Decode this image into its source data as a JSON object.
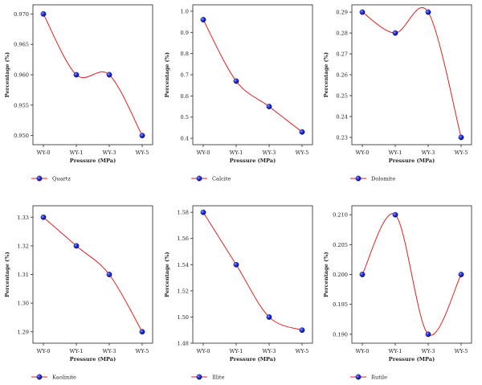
{
  "chart_data": [
    {
      "type": "scatter",
      "title": "",
      "xlabel": "Pressure (MPa)",
      "ylabel": "Percentage (%)",
      "categories": [
        "WY-0",
        "WY-1",
        "WY-3",
        "WY-5"
      ],
      "yticks": [
        "0.950",
        "0.955",
        "0.960",
        "0.965",
        "0.970"
      ],
      "ylim": [
        0.9485,
        0.9715
      ],
      "series": [
        {
          "name": "Quartz",
          "values": [
            0.97,
            0.96,
            0.96,
            0.95
          ]
        }
      ],
      "legend": "bottom-left",
      "grid": false,
      "marker_color": "#1c2bd8",
      "curve_color": "#e02020"
    },
    {
      "type": "scatter",
      "title": "",
      "xlabel": "Pressure (MPa)",
      "ylabel": "Percentage (%)",
      "categories": [
        "WY-0",
        "WY-1",
        "WY-3",
        "WY-5"
      ],
      "yticks": [
        "0.4",
        "0.5",
        "0.6",
        "0.7",
        "0.8",
        "0.9",
        "1.0"
      ],
      "ylim": [
        0.37,
        1.03
      ],
      "series": [
        {
          "name": "Calcite",
          "values": [
            0.96,
            0.67,
            0.55,
            0.43
          ]
        }
      ],
      "legend": "bottom-left",
      "grid": false,
      "marker_color": "#1c2bd8",
      "curve_color": "#e02020"
    },
    {
      "type": "scatter",
      "title": "",
      "xlabel": "Pressure (MPa)",
      "ylabel": "Percentage (%)",
      "categories": [
        "WY-0",
        "WY-1",
        "WY-3",
        "WY-5"
      ],
      "yticks": [
        "0.23",
        "0.24",
        "0.25",
        "0.26",
        "0.27",
        "0.28",
        "0.29"
      ],
      "ylim": [
        0.2265,
        0.2935
      ],
      "series": [
        {
          "name": "Dolomite",
          "values": [
            0.29,
            0.28,
            0.29,
            0.23
          ]
        }
      ],
      "legend": "bottom-left",
      "grid": false,
      "marker_color": "#1c2bd8",
      "curve_color": "#e02020"
    },
    {
      "type": "scatter",
      "title": "",
      "xlabel": "Pressure (MPa)",
      "ylabel": "Percentage (%)",
      "categories": [
        "WY-0",
        "WY-1",
        "WY-3",
        "WY-5"
      ],
      "yticks": [
        "1.29",
        "1.30",
        "1.31",
        "1.32",
        "1.33"
      ],
      "ylim": [
        1.286,
        1.334
      ],
      "series": [
        {
          "name": "Kaolinite",
          "values": [
            1.33,
            1.32,
            1.31,
            1.29
          ]
        }
      ],
      "legend": "bottom-left",
      "grid": false,
      "marker_color": "#1c2bd8",
      "curve_color": "#e02020"
    },
    {
      "type": "scatter",
      "title": "",
      "xlabel": "Pressure (MPa)",
      "ylabel": "Percentage (%)",
      "categories": [
        "WY-0",
        "WY-1",
        "WY-3",
        "WY-5"
      ],
      "yticks": [
        "1.48",
        "1.50",
        "1.52",
        "1.54",
        "1.56",
        "1.58"
      ],
      "ylim": [
        1.48,
        1.585
      ],
      "series": [
        {
          "name": "Illite",
          "values": [
            1.58,
            1.54,
            1.5,
            1.49
          ]
        }
      ],
      "legend": "bottom-left",
      "grid": false,
      "marker_color": "#1c2bd8",
      "curve_color": "#e02020"
    },
    {
      "type": "scatter",
      "title": "",
      "xlabel": "Pressure (MPa)",
      "ylabel": "Percentage (%)",
      "categories": [
        "WY-0",
        "WY-1",
        "WY-3",
        "WY-5"
      ],
      "yticks": [
        "0.190",
        "0.195",
        "0.200",
        "0.205",
        "0.210"
      ],
      "ylim": [
        0.1885,
        0.2115
      ],
      "series": [
        {
          "name": "Rutile",
          "values": [
            0.2,
            0.21,
            0.19,
            0.2
          ]
        }
      ],
      "legend": "bottom-left",
      "grid": false,
      "marker_color": "#1c2bd8",
      "curve_color": "#e02020"
    }
  ]
}
